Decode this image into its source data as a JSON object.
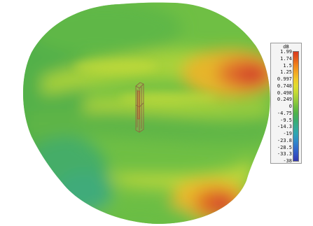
{
  "legend": {
    "unit": "dB",
    "ticks": [
      "1.99",
      "1.74",
      "1.5",
      "1.25",
      "0.997",
      "0.748",
      "0.498",
      "0.249",
      "0",
      "-4.75",
      "-9.5",
      "-14.3",
      "-19",
      "-23.8",
      "-28.5",
      "-33.3",
      "-38"
    ],
    "colors": [
      "#d83a1f",
      "#e45a1c",
      "#f0841c",
      "#f2a624",
      "#f0c72a",
      "#e0dc2e",
      "#c3d935",
      "#9ccd3b",
      "#72c03d",
      "#4fb24b",
      "#3cad6d",
      "#35ab92",
      "#2fa6b2",
      "#2f8dc8",
      "#3170cc",
      "#3354c4",
      "#3438b0"
    ]
  }
}
